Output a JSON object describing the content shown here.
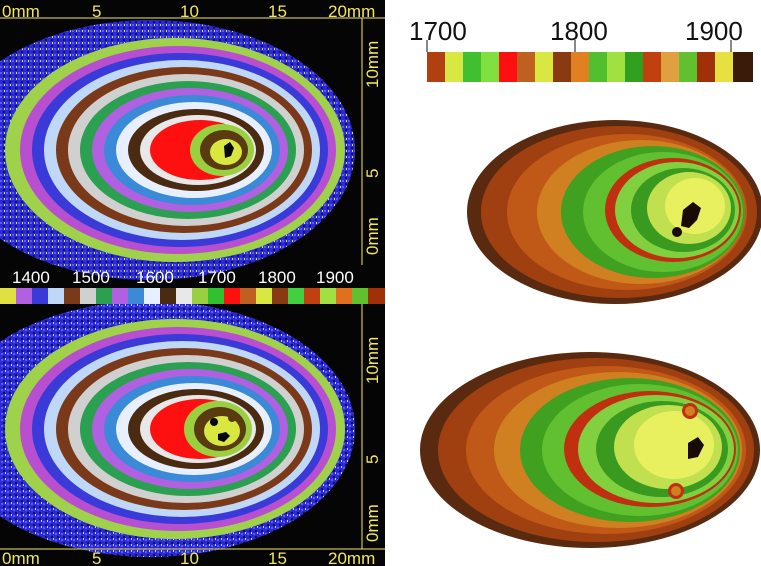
{
  "top_map": {
    "x_ticks": [
      "0mm",
      "5",
      "10",
      "15",
      "20mm"
    ],
    "y_ticks": [
      "10mm",
      "5",
      "0mm"
    ],
    "scale_ticks": [
      "1400",
      "1500",
      "1600",
      "1700",
      "1800",
      "1900"
    ]
  },
  "bottom_map": {
    "x_ticks": [
      "0mm",
      "5",
      "10",
      "15",
      "20mm"
    ],
    "y_ticks": [
      "10mm",
      "5",
      "0mm"
    ]
  },
  "right_scale": {
    "ticks": [
      "1700",
      "1800",
      "1900"
    ]
  },
  "colors": {
    "background_map": "#050505",
    "axis_label": "#f2e65a",
    "hot_core": "#ff1010"
  }
}
